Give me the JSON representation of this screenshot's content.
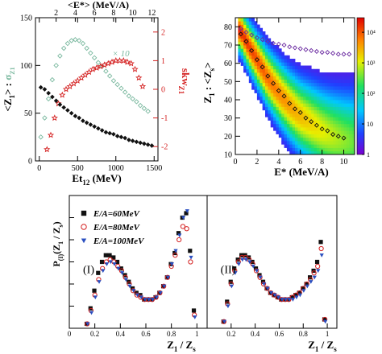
{
  "chart_data": [
    {
      "id": "left-top",
      "type": "scatter",
      "xlabel_base": "Et",
      "xlabel_sub": "12",
      "xlabel_unit": " (MeV)",
      "top_xlabel": "<E*> (MeV/A)",
      "ylabel_main": "<Z",
      "ylabel_sub": "1",
      "ylabel_close": "> : ",
      "ylabel_sigma": "σ",
      "ylabel_sigma_sub": "Z1",
      "y2label_base": "skw",
      "y2label_sub": "Z1",
      "xlim": [
        -50,
        1550
      ],
      "xticks": [
        0,
        500,
        1000,
        1500
      ],
      "ylim": [
        0,
        150
      ],
      "yticks": [
        0,
        50,
        100,
        150
      ],
      "y2lim": [
        -2.5,
        2.5
      ],
      "y2ticks": [
        -2,
        -1,
        0,
        1,
        2
      ],
      "top_xticks": [
        2,
        4,
        6,
        8,
        10,
        12
      ],
      "annotation": "× 10",
      "colors": {
        "mean": "#111111",
        "sigma": "#79b89e",
        "skew": "#d42020"
      },
      "series_mean": {
        "x": [
          20,
          70,
          120,
          170,
          220,
          270,
          320,
          370,
          420,
          470,
          520,
          570,
          620,
          670,
          720,
          770,
          820,
          870,
          920,
          970,
          1020,
          1070,
          1120,
          1170,
          1220,
          1270,
          1320,
          1370,
          1420,
          1470
        ],
        "y": [
          77,
          75,
          71,
          67,
          63,
          59,
          56,
          53,
          50,
          47,
          45,
          42,
          40,
          38,
          36,
          34,
          32,
          30,
          29,
          28,
          26,
          25,
          24,
          22,
          21,
          20,
          19,
          18,
          17,
          16
        ]
      },
      "series_sigma": {
        "x": [
          20,
          70,
          120,
          170,
          220,
          270,
          320,
          370,
          420,
          470,
          520,
          570,
          620,
          670,
          720,
          770,
          820,
          870,
          920,
          970,
          1020,
          1070,
          1120,
          1170,
          1220,
          1270,
          1320,
          1370,
          1420
        ],
        "y": [
          25,
          45,
          65,
          85,
          100,
          110,
          118,
          123,
          126,
          127,
          126,
          123,
          118,
          113,
          108,
          103,
          99,
          94,
          89,
          84,
          80,
          76,
          72,
          68,
          65,
          62,
          58,
          55,
          52
        ]
      },
      "series_skew": {
        "x": [
          100,
          150,
          200,
          250,
          300,
          350,
          400,
          450,
          500,
          550,
          600,
          650,
          700,
          750,
          800,
          850,
          900,
          950,
          1000,
          1050,
          1100,
          1150,
          1200,
          1250,
          1300,
          1350
        ],
        "y": [
          -2.1,
          -1.6,
          -1.0,
          -0.5,
          -0.2,
          0.0,
          0.1,
          0.2,
          0.3,
          0.4,
          0.5,
          0.6,
          0.7,
          0.75,
          0.8,
          0.85,
          0.9,
          0.95,
          1.0,
          1.0,
          1.0,
          0.95,
          0.9,
          0.7,
          0.4,
          0.1
        ]
      }
    },
    {
      "id": "right-top",
      "type": "heatmap",
      "xlabel": "E* (MeV/A)",
      "ylabel_main": "Z",
      "ylabel_sub": "1",
      "ylabel_rest": " : <Z",
      "ylabel_sub2": "s",
      "ylabel_close": ">",
      "xlim": [
        0,
        11
      ],
      "xticks": [
        0,
        2,
        4,
        6,
        8,
        10
      ],
      "ylim": [
        10,
        85
      ],
      "yticks": [
        10,
        20,
        30,
        40,
        50,
        60,
        70,
        80
      ],
      "colorbar": {
        "scale": "log",
        "range": [
          1,
          30000
        ],
        "ticks": [
          "1",
          "10",
          "10²",
          "10³",
          "10⁴"
        ]
      },
      "band_center": {
        "x": [
          0.5,
          1,
          2,
          3,
          4,
          5,
          6,
          7,
          8,
          9,
          10,
          10.8
        ],
        "y": [
          78,
          72,
          62,
          52,
          44,
          37,
          31,
          27,
          23,
          20,
          18,
          17
        ]
      },
      "mean_points": {
        "x": [
          0.5,
          1.0,
          1.5,
          2.0,
          2.5,
          3.0,
          3.5,
          4.0,
          4.5,
          5.0,
          5.5,
          6.0,
          6.5,
          7.0,
          7.5,
          8.0,
          8.5,
          9.0,
          9.5,
          10.0
        ],
        "y": [
          76,
          72,
          67,
          62,
          58,
          53,
          49,
          45,
          42,
          38,
          35,
          33,
          30,
          28,
          26,
          24,
          23,
          21,
          20,
          19
        ]
      },
      "zs_series": {
        "x": [
          0.5,
          1.0,
          1.5,
          2.0,
          2.5,
          3.0,
          3.5,
          4.0,
          4.5,
          5.0,
          5.5,
          6.0,
          6.5,
          7.0,
          7.5,
          8.0,
          8.5,
          9.0,
          9.5,
          10.0,
          10.5
        ],
        "y": [
          79,
          77,
          75.5,
          74,
          73,
          72,
          71,
          70.5,
          70,
          69,
          68.5,
          68,
          67.5,
          67,
          66.5,
          66,
          66,
          65.5,
          65,
          65,
          65
        ]
      }
    },
    {
      "id": "bottom",
      "type": "scatter",
      "ylabel_base": "P",
      "ylabel_sub": "(I)",
      "ylabel_paren": "(Z",
      "ylabel_sub1": "1",
      "ylabel_slash": " / Z",
      "ylabel_sub2": "s",
      "ylabel_close": ")",
      "xlabel_main": "Z",
      "xlabel_sub": "1",
      "xlabel_rest": " / Z",
      "xlabel_sub2": "s",
      "panel_labels": [
        "(I)",
        "(II)"
      ],
      "xlim": [
        0,
        1.08
      ],
      "xticks": [
        0,
        0.2,
        0.4,
        0.6,
        0.8,
        1
      ],
      "xtick_labels": [
        "0",
        "0.2",
        "0.4",
        "0.6",
        "0.8",
        "1"
      ],
      "ylim": [
        0,
        0.06
      ],
      "yticks": [
        0,
        0.01,
        0.02,
        0.03,
        0.04,
        0.05
      ],
      "series": [
        {
          "name": "E/A=60MeV",
          "marker": "square",
          "color": "#111111",
          "panel1": {
            "x": [
              0.14,
              0.17,
              0.2,
              0.23,
              0.26,
              0.29,
              0.32,
              0.35,
              0.38,
              0.41,
              0.44,
              0.47,
              0.5,
              0.53,
              0.56,
              0.59,
              0.62,
              0.65,
              0.68,
              0.71,
              0.74,
              0.77,
              0.8,
              0.83,
              0.86,
              0.89,
              0.92,
              0.95,
              0.98
            ],
            "y": [
              0.002,
              0.009,
              0.017,
              0.025,
              0.03,
              0.033,
              0.033,
              0.032,
              0.03,
              0.027,
              0.024,
              0.021,
              0.018,
              0.016,
              0.015,
              0.013,
              0.013,
              0.013,
              0.014,
              0.016,
              0.019,
              0.023,
              0.029,
              0.034,
              0.043,
              0.05,
              0.052,
              0.035,
              0.008
            ]
          },
          "panel2": {
            "x": [
              0.14,
              0.17,
              0.2,
              0.23,
              0.26,
              0.29,
              0.32,
              0.35,
              0.38,
              0.41,
              0.44,
              0.47,
              0.5,
              0.53,
              0.56,
              0.59,
              0.62,
              0.65,
              0.68,
              0.71,
              0.74,
              0.77,
              0.8,
              0.83,
              0.86,
              0.89,
              0.92,
              0.95,
              0.98
            ],
            "y": [
              0.003,
              0.012,
              0.021,
              0.027,
              0.031,
              0.033,
              0.033,
              0.032,
              0.03,
              0.027,
              0.024,
              0.021,
              0.018,
              0.016,
              0.015,
              0.014,
              0.013,
              0.013,
              0.013,
              0.014,
              0.015,
              0.016,
              0.018,
              0.02,
              0.023,
              0.026,
              0.03,
              0.039,
              0.004
            ]
          }
        },
        {
          "name": "E/A=80MeV",
          "marker": "circle",
          "color": "#d42020",
          "panel1": {
            "x": [
              0.14,
              0.17,
              0.2,
              0.23,
              0.26,
              0.29,
              0.32,
              0.35,
              0.38,
              0.41,
              0.44,
              0.47,
              0.5,
              0.53,
              0.56,
              0.59,
              0.62,
              0.65,
              0.68,
              0.71,
              0.74,
              0.77,
              0.8,
              0.83,
              0.86,
              0.89,
              0.92,
              0.95,
              0.98
            ],
            "y": [
              0.002,
              0.008,
              0.015,
              0.022,
              0.027,
              0.03,
              0.031,
              0.03,
              0.028,
              0.026,
              0.023,
              0.02,
              0.017,
              0.015,
              0.014,
              0.013,
              0.013,
              0.013,
              0.014,
              0.016,
              0.019,
              0.023,
              0.028,
              0.033,
              0.04,
              0.046,
              0.045,
              0.03,
              0.006
            ]
          },
          "panel2": {
            "x": [
              0.14,
              0.17,
              0.2,
              0.23,
              0.26,
              0.29,
              0.32,
              0.35,
              0.38,
              0.41,
              0.44,
              0.47,
              0.5,
              0.53,
              0.56,
              0.59,
              0.62,
              0.65,
              0.68,
              0.71,
              0.74,
              0.77,
              0.8,
              0.83,
              0.86,
              0.89,
              0.92,
              0.95,
              0.98
            ],
            "y": [
              0.003,
              0.011,
              0.02,
              0.026,
              0.03,
              0.032,
              0.032,
              0.031,
              0.029,
              0.026,
              0.023,
              0.02,
              0.018,
              0.016,
              0.015,
              0.014,
              0.013,
              0.013,
              0.013,
              0.014,
              0.015,
              0.016,
              0.018,
              0.02,
              0.022,
              0.025,
              0.028,
              0.036,
              0.004
            ]
          }
        },
        {
          "name": "E/A=100MeV",
          "marker": "triangle-down",
          "color": "#2a4fc0",
          "panel1": {
            "x": [
              0.14,
              0.17,
              0.2,
              0.23,
              0.26,
              0.29,
              0.32,
              0.35,
              0.38,
              0.41,
              0.44,
              0.47,
              0.5,
              0.53,
              0.56,
              0.59,
              0.62,
              0.65,
              0.68,
              0.71,
              0.74,
              0.77,
              0.8,
              0.83,
              0.86,
              0.89,
              0.92,
              0.95,
              0.98
            ],
            "y": [
              0.002,
              0.007,
              0.014,
              0.021,
              0.026,
              0.029,
              0.03,
              0.029,
              0.027,
              0.025,
              0.022,
              0.019,
              0.017,
              0.015,
              0.014,
              0.013,
              0.013,
              0.013,
              0.014,
              0.016,
              0.019,
              0.023,
              0.029,
              0.035,
              0.042,
              0.05,
              0.053,
              0.032,
              0.005
            ]
          },
          "panel2": {
            "x": [
              0.14,
              0.17,
              0.2,
              0.23,
              0.26,
              0.29,
              0.32,
              0.35,
              0.38,
              0.41,
              0.44,
              0.47,
              0.5,
              0.53,
              0.56,
              0.59,
              0.62,
              0.65,
              0.68,
              0.71,
              0.74,
              0.77,
              0.8,
              0.83,
              0.86,
              0.89,
              0.92,
              0.95,
              0.98
            ],
            "y": [
              0.003,
              0.01,
              0.019,
              0.025,
              0.029,
              0.031,
              0.031,
              0.03,
              0.028,
              0.026,
              0.023,
              0.02,
              0.018,
              0.016,
              0.015,
              0.014,
              0.013,
              0.013,
              0.013,
              0.013,
              0.014,
              0.015,
              0.017,
              0.019,
              0.021,
              0.023,
              0.026,
              0.033,
              0.003
            ]
          }
        }
      ]
    }
  ]
}
